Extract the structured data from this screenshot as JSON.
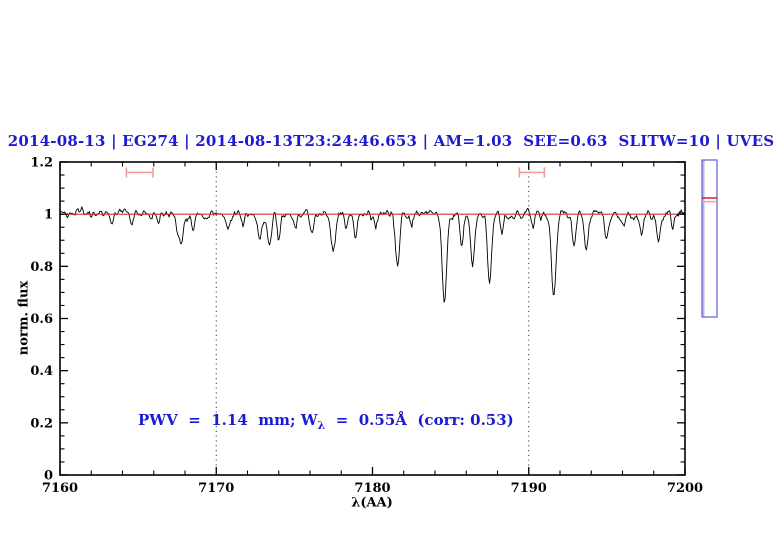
{
  "header": {
    "title": "2014-08-13 | EG274 | 2014-08-13T23:24:46.653 | AM=1.03  SEE=0.63  SLITW=10 | UVES",
    "color": "#1b1bd1"
  },
  "annotation": {
    "prefix": "PWV  =  1.14  mm; W",
    "subscript": "λ",
    "suffix": "  =  0.55Å  (corr: 0.53)",
    "full_text": "PWV = 1.14 mm; W_λ = 0.55Å (corr: 0.53)",
    "color": "#1b1bd1"
  },
  "chart_data": {
    "type": "line",
    "title": "2014-08-13 | EG274 | 2014-08-13T23:24:46.653 | AM=1.03  SEE=0.63  SLITW=10 | UVES",
    "xlabel": "λ(AA)",
    "ylabel": "norm. flux",
    "xlim": [
      7160,
      7200
    ],
    "ylim": [
      0,
      1.2
    ],
    "x_tick_labels": [
      "7160",
      "7170",
      "7180",
      "7190",
      "7200"
    ],
    "x_major_ticks": [
      7160,
      7170,
      7180,
      7190,
      7200
    ],
    "x_minor_step": 2,
    "y_tick_labels": [
      "0",
      "0.2",
      "0.4",
      "0.6",
      "0.8",
      "1",
      "1.2"
    ],
    "y_major_ticks": [
      0,
      0.2,
      0.4,
      0.6,
      0.8,
      1.0,
      1.2
    ],
    "y_minor_step": 0.05,
    "grid": "off",
    "legend": "none",
    "line_color": "#000000",
    "continuum": {
      "y": 1.0,
      "color": "#d03030"
    },
    "dotted_vlines": [
      7170,
      7190
    ],
    "noise_sigma": 0.01,
    "absorption_lines_format": [
      "center_AA",
      "min_flux",
      "fwhm_AA"
    ],
    "absorption_lines": [
      [
        7163.3,
        0.955,
        0.25
      ],
      [
        7164.6,
        0.958,
        0.2
      ],
      [
        7166.3,
        0.965,
        0.2
      ],
      [
        7167.7,
        0.885,
        0.45
      ],
      [
        7168.5,
        0.928,
        0.25
      ],
      [
        7169.3,
        0.962,
        0.2
      ],
      [
        7170.7,
        0.94,
        0.3
      ],
      [
        7171.7,
        0.955,
        0.2
      ],
      [
        7172.8,
        0.908,
        0.3
      ],
      [
        7173.4,
        0.875,
        0.3
      ],
      [
        7174.0,
        0.9,
        0.25
      ],
      [
        7175.1,
        0.952,
        0.2
      ],
      [
        7176.1,
        0.928,
        0.3
      ],
      [
        7177.5,
        0.858,
        0.35
      ],
      [
        7178.3,
        0.945,
        0.2
      ],
      [
        7178.9,
        0.918,
        0.25
      ],
      [
        7180.2,
        0.952,
        0.2
      ],
      [
        7181.6,
        0.795,
        0.3
      ],
      [
        7182.5,
        0.948,
        0.2
      ],
      [
        7184.6,
        0.66,
        0.35
      ],
      [
        7185.7,
        0.878,
        0.25
      ],
      [
        7186.4,
        0.8,
        0.3
      ],
      [
        7187.5,
        0.73,
        0.3
      ],
      [
        7188.3,
        0.93,
        0.2
      ],
      [
        7190.3,
        0.955,
        0.2
      ],
      [
        7191.6,
        0.685,
        0.35
      ],
      [
        7192.9,
        0.868,
        0.3
      ],
      [
        7193.7,
        0.868,
        0.3
      ],
      [
        7195.0,
        0.905,
        0.3
      ],
      [
        7196.1,
        0.948,
        0.2
      ],
      [
        7197.2,
        0.925,
        0.3
      ],
      [
        7198.3,
        0.898,
        0.3
      ],
      [
        7199.2,
        0.948,
        0.2
      ]
    ],
    "range_markers": [
      {
        "x": 7165.1,
        "half_width": 0.85,
        "y": 1.16,
        "color": "#f29b9b"
      },
      {
        "x": 7190.2,
        "half_width": 0.8,
        "y": 1.16,
        "color": "#f29b9b"
      }
    ]
  },
  "side_panel": {
    "border_color": "#7575db",
    "accent_color": "#b5b5f2",
    "marker_colors": [
      "#d03030",
      "#f2a0a0"
    ],
    "marker_fluxes": [
      1.062,
      1.048
    ]
  }
}
